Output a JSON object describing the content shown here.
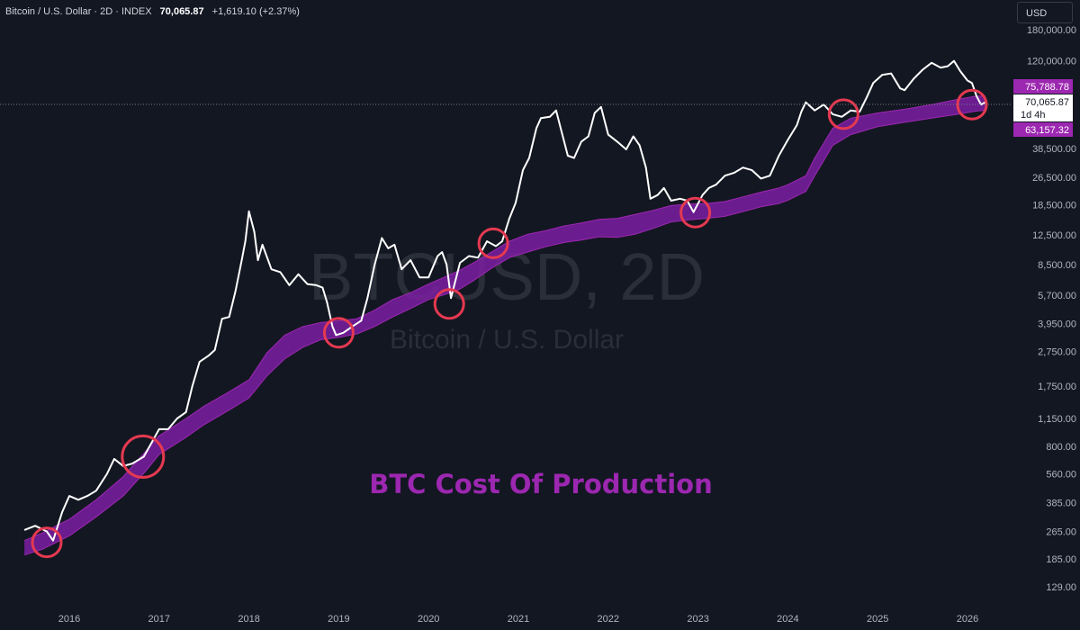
{
  "header": {
    "symbol_title": "Bitcoin / U.S. Dollar · 2D · INDEX",
    "last_price": "70,065.87",
    "change": "+1,619.10 (+2.37%)"
  },
  "currency_button": "USD",
  "watermark": {
    "main": "BTCUSD, 2D",
    "sub": "Bitcoin / U.S. Dollar"
  },
  "annotation": "BTC Cost Of Production",
  "price_tags": {
    "upper_band": "75,788.78",
    "last_price": "70,065.87",
    "countdown": "1d 4h",
    "lower_band": "63,157.32"
  },
  "colors": {
    "background": "#131722",
    "price_line": "#ffffff",
    "band_fill": "#7b1fa2",
    "band_edge": "#9c27b0",
    "circle": "#e53950",
    "annotation": "#9c27b0"
  },
  "chart_data": {
    "type": "line",
    "title": "Bitcoin / U.S. Dollar · 2D · INDEX",
    "annotation": "BTC Cost Of Production",
    "y_scale": "log",
    "ylim": [
      100,
      180000
    ],
    "y_ticks": [
      129,
      185,
      265,
      385,
      560,
      800,
      1150,
      1750,
      2750,
      3950,
      5700,
      8500,
      12500,
      18500,
      26500,
      38500,
      120000,
      180000
    ],
    "y_tick_labels": [
      "129.00",
      "185.00",
      "265.00",
      "385.00",
      "560.00",
      "800.00",
      "1,150.00",
      "1,750.00",
      "2,750.00",
      "3,950.00",
      "5,700.00",
      "8,500.00",
      "12,500.00",
      "18,500.00",
      "26,500.00",
      "38,500.00",
      "120,000.00",
      "180,000.00"
    ],
    "xlim": [
      2015.5,
      2026.4
    ],
    "x_ticks": [
      2016,
      2017,
      2018,
      2019,
      2020,
      2021,
      2022,
      2023,
      2024,
      2025,
      2026
    ],
    "x_tick_labels": [
      "2016",
      "2017",
      "2018",
      "2019",
      "2020",
      "2021",
      "2022",
      "2023",
      "2024",
      "2025",
      "2026"
    ],
    "series": [
      {
        "name": "BTCUSD",
        "x": [
          2015.5,
          2015.62,
          2015.75,
          2015.82,
          2015.92,
          2016.0,
          2016.1,
          2016.2,
          2016.3,
          2016.42,
          2016.5,
          2016.6,
          2016.7,
          2016.83,
          2016.95,
          2017.0,
          2017.1,
          2017.2,
          2017.3,
          2017.37,
          2017.45,
          2017.55,
          2017.62,
          2017.7,
          2017.78,
          2017.85,
          2017.92,
          2017.96,
          2018.0,
          2018.06,
          2018.1,
          2018.15,
          2018.25,
          2018.35,
          2018.45,
          2018.55,
          2018.65,
          2018.75,
          2018.82,
          2018.87,
          2018.93,
          2018.97,
          2019.05,
          2019.15,
          2019.25,
          2019.32,
          2019.4,
          2019.48,
          2019.55,
          2019.62,
          2019.7,
          2019.8,
          2019.9,
          2020.0,
          2020.1,
          2020.15,
          2020.2,
          2020.25,
          2020.35,
          2020.45,
          2020.55,
          2020.65,
          2020.75,
          2020.82,
          2020.9,
          2020.97,
          2021.05,
          2021.12,
          2021.2,
          2021.25,
          2021.35,
          2021.42,
          2021.48,
          2021.55,
          2021.62,
          2021.7,
          2021.78,
          2021.85,
          2021.92,
          2022.0,
          2022.1,
          2022.2,
          2022.28,
          2022.35,
          2022.42,
          2022.47,
          2022.55,
          2022.62,
          2022.7,
          2022.8,
          2022.88,
          2022.95,
          2023.05,
          2023.12,
          2023.2,
          2023.3,
          2023.4,
          2023.5,
          2023.6,
          2023.7,
          2023.8,
          2023.9,
          2024.0,
          2024.1,
          2024.15,
          2024.2,
          2024.3,
          2024.4,
          2024.5,
          2024.6,
          2024.7,
          2024.8,
          2024.88,
          2024.95,
          2025.05,
          2025.15,
          2025.25,
          2025.3,
          2025.4,
          2025.5,
          2025.6,
          2025.7,
          2025.78,
          2025.85,
          2025.92,
          2026.0,
          2026.05,
          2026.1,
          2026.15,
          2026.2
        ],
        "values": [
          270,
          285,
          265,
          235,
          340,
          420,
          400,
          420,
          450,
          560,
          680,
          620,
          640,
          700,
          900,
          1000,
          1000,
          1150,
          1250,
          1750,
          2400,
          2600,
          2800,
          4200,
          4300,
          6000,
          9000,
          11500,
          17000,
          13000,
          9000,
          11000,
          8000,
          7700,
          6500,
          7500,
          6600,
          6500,
          6300,
          5200,
          3800,
          3400,
          3500,
          3800,
          4100,
          5500,
          8500,
          12000,
          10500,
          11000,
          8000,
          9000,
          7200,
          7200,
          9500,
          10000,
          8500,
          5500,
          8700,
          9500,
          9300,
          11500,
          10800,
          11500,
          15500,
          19000,
          29000,
          34000,
          50000,
          57000,
          58000,
          63000,
          48000,
          35000,
          34000,
          42000,
          45000,
          61000,
          66000,
          46000,
          42000,
          38000,
          45000,
          40000,
          30000,
          20000,
          21000,
          23000,
          19500,
          20000,
          19500,
          16800,
          21000,
          23000,
          24000,
          27000,
          28000,
          30000,
          29000,
          26000,
          27000,
          35000,
          43000,
          52000,
          62000,
          70000,
          63000,
          68000,
          60000,
          58000,
          63000,
          62000,
          75000,
          90000,
          100000,
          102000,
          84000,
          82000,
          95000,
          107000,
          117000,
          110000,
          112000,
          120000,
          105000,
          93000,
          90000,
          76000,
          68000,
          70000
        ]
      },
      {
        "name": "BTC Cost Of Production (upper)",
        "x": [
          2015.5,
          2015.7,
          2016.0,
          2016.3,
          2016.6,
          2016.85,
          2017.0,
          2017.3,
          2017.5,
          2017.8,
          2018.0,
          2018.2,
          2018.4,
          2018.6,
          2018.8,
          2019.0,
          2019.2,
          2019.4,
          2019.6,
          2019.8,
          2020.0,
          2020.2,
          2020.35,
          2020.5,
          2020.7,
          2020.9,
          2021.1,
          2021.3,
          2021.5,
          2021.7,
          2021.9,
          2022.1,
          2022.3,
          2022.5,
          2022.7,
          2022.9,
          2023.1,
          2023.3,
          2023.5,
          2023.7,
          2023.9,
          2024.0,
          2024.2,
          2024.3,
          2024.5,
          2024.7,
          2025.0,
          2025.3,
          2025.6,
          2025.9,
          2026.1,
          2026.2
        ],
        "values": [
          235,
          260,
          310,
          400,
          540,
          750,
          920,
          1150,
          1350,
          1650,
          1900,
          2700,
          3400,
          3800,
          4000,
          4100,
          4200,
          4700,
          5400,
          5900,
          6600,
          7300,
          7900,
          8700,
          10000,
          11500,
          12600,
          13200,
          14000,
          14600,
          15300,
          15500,
          16300,
          17200,
          18300,
          18700,
          18800,
          19300,
          20500,
          21800,
          23000,
          24000,
          27000,
          34000,
          50000,
          57000,
          61000,
          64000,
          68000,
          73000,
          76000,
          75800
        ]
      },
      {
        "name": "BTC Cost Of Production (lower)",
        "x": [
          2015.5,
          2015.7,
          2016.0,
          2016.3,
          2016.6,
          2016.85,
          2017.0,
          2017.3,
          2017.5,
          2017.8,
          2018.0,
          2018.2,
          2018.4,
          2018.6,
          2018.8,
          2019.0,
          2019.2,
          2019.4,
          2019.6,
          2019.8,
          2020.0,
          2020.2,
          2020.35,
          2020.5,
          2020.7,
          2020.9,
          2021.1,
          2021.3,
          2021.5,
          2021.7,
          2021.9,
          2022.1,
          2022.3,
          2022.5,
          2022.7,
          2022.9,
          2023.1,
          2023.3,
          2023.5,
          2023.7,
          2023.9,
          2024.0,
          2024.2,
          2024.3,
          2024.5,
          2024.7,
          2025.0,
          2025.3,
          2025.6,
          2025.9,
          2026.1,
          2026.2
        ],
        "values": [
          195,
          210,
          250,
          320,
          420,
          580,
          720,
          900,
          1060,
          1300,
          1500,
          2000,
          2500,
          2900,
          3200,
          3300,
          3450,
          3800,
          4300,
          4800,
          5400,
          5800,
          6200,
          6900,
          8100,
          9300,
          10000,
          10700,
          11300,
          11700,
          12200,
          12100,
          12600,
          13600,
          14800,
          15200,
          15500,
          15900,
          16900,
          18000,
          18800,
          19600,
          22000,
          27000,
          40000,
          46000,
          51000,
          54000,
          57000,
          60000,
          62500,
          63100
        ]
      }
    ],
    "highlight_circles": [
      {
        "x": 2015.75,
        "y": 230
      },
      {
        "x": 2016.82,
        "y": 700
      },
      {
        "x": 2019.0,
        "y": 3500
      },
      {
        "x": 2020.23,
        "y": 5100
      },
      {
        "x": 2020.72,
        "y": 11200
      },
      {
        "x": 2022.97,
        "y": 16700
      },
      {
        "x": 2024.62,
        "y": 60000
      },
      {
        "x": 2026.05,
        "y": 68000
      }
    ]
  }
}
